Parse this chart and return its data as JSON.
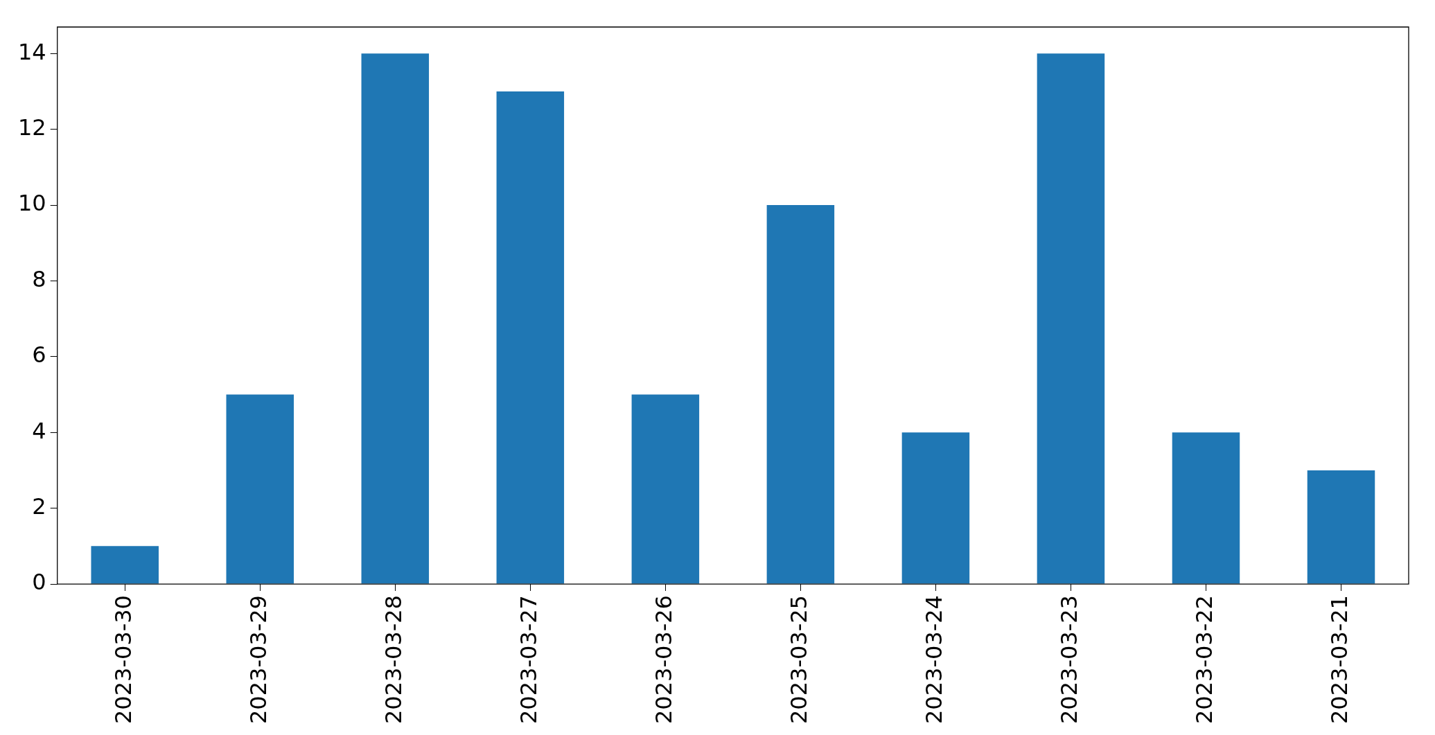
{
  "chart_data": {
    "type": "bar",
    "categories": [
      "2023-03-30",
      "2023-03-29",
      "2023-03-28",
      "2023-03-27",
      "2023-03-26",
      "2023-03-25",
      "2023-03-24",
      "2023-03-23",
      "2023-03-22",
      "2023-03-21"
    ],
    "values": [
      1,
      5,
      14,
      13,
      5,
      10,
      4,
      14,
      4,
      3
    ],
    "color": "#1f77b4",
    "ylim": [
      0,
      14.7
    ],
    "yticks": [
      0,
      2,
      4,
      6,
      8,
      10,
      12,
      14
    ],
    "grid": false,
    "legend": false
  }
}
